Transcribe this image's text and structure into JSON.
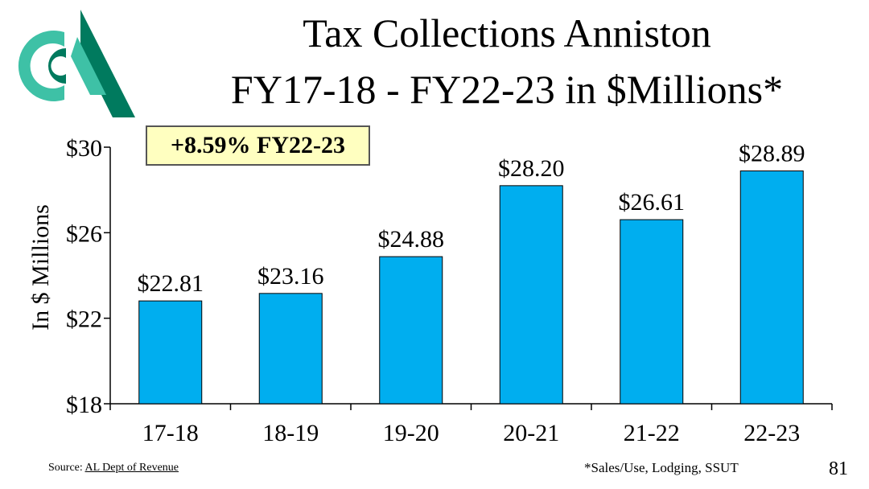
{
  "slide": {
    "title_line1": "Tax Collections Anniston",
    "title_line2": "FY17-18 - FY22-23 in $Millions*",
    "callout": "+8.59% FY22-23",
    "source_prefix": "Source: ",
    "source_link": "AL Dept of Revenue",
    "footnote": "*Sales/Use, Lodging, SSUT",
    "page_number": "81",
    "logo_icon": "org-logo-icon"
  },
  "colors": {
    "bar": "#00AEEF",
    "bar_outline": "#000000",
    "logo_dark": "#007A5E",
    "logo_light": "#3EC1A6",
    "callout_bg": "#FFFFC0"
  },
  "chart_data": {
    "type": "bar",
    "categories": [
      "17-18",
      "18-19",
      "19-20",
      "20-21",
      "21-22",
      "22-23"
    ],
    "values": [
      22.81,
      23.16,
      24.88,
      28.2,
      26.61,
      28.89
    ],
    "data_labels": [
      "$22.81",
      "$23.16",
      "$24.88",
      "$28.20",
      "$26.61",
      "$28.89"
    ],
    "ylabel": "In $ Millions",
    "xlabel": "",
    "ylim": [
      18,
      30
    ],
    "yticks": [
      18,
      22,
      26,
      30
    ],
    "ytick_labels": [
      "$18",
      "$22",
      "$26",
      "$30"
    ],
    "grid": false,
    "legend": "none"
  }
}
